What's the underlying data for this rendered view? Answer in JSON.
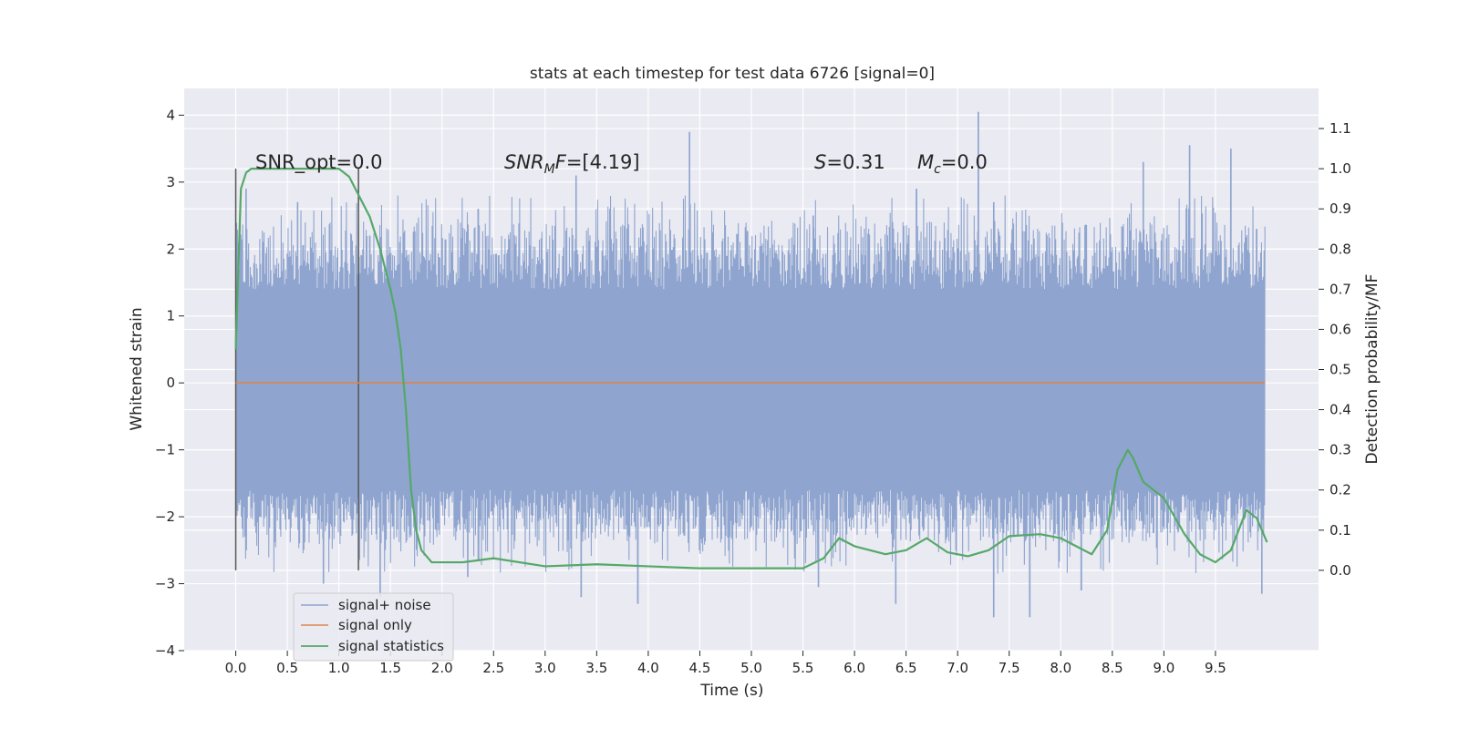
{
  "chart_data": {
    "type": "line",
    "title": "stats at each timestep for test data 6726 [signal=0]",
    "xlabel": "Time (s)",
    "ylabel": "Whitened strain",
    "y2label": "Detection probability/MF",
    "xlim": [
      -0.5,
      10.5
    ],
    "ylim": [
      -4,
      4.4
    ],
    "y2lim": [
      -0.2,
      1.2
    ],
    "xticks": [
      "0.0",
      "0.5",
      "1.0",
      "1.5",
      "2.0",
      "2.5",
      "3.0",
      "3.5",
      "4.0",
      "4.5",
      "5.0",
      "5.5",
      "6.0",
      "6.5",
      "7.0",
      "7.5",
      "8.0",
      "8.5",
      "9.0",
      "9.5"
    ],
    "yticks": [
      "4",
      "3",
      "2",
      "1",
      "0",
      "−1",
      "−2",
      "−3",
      "−4"
    ],
    "y2ticks": [
      "1.1",
      "1.0",
      "0.9",
      "0.8",
      "0.7",
      "0.6",
      "0.5",
      "0.4",
      "0.3",
      "0.2",
      "0.1",
      "0.0"
    ],
    "grid": true,
    "legend_position": "lower-left",
    "colors": {
      "background": "#eaeaf2",
      "noise": "#8fa5cf",
      "signal": "#dd8452",
      "stats": "#55a868",
      "markers": "#555555"
    },
    "annotations": {
      "snr_opt": "SNR_opt=0.0",
      "snr_mf_var": "SNR",
      "snr_mf_sub": "M",
      "snr_mf_var2": "F",
      "snr_mf_val": "=[4.19]",
      "s_var": "S",
      "s_val": "=0.31",
      "mc_var": "M",
      "mc_sub": "c",
      "mc_val": "=0.0"
    },
    "markers_x": [
      0.0,
      1.19
    ],
    "series": [
      {
        "name": "signal+ noise",
        "style": "noise band",
        "x_range": [
          0.0,
          9.98
        ],
        "band": [
          -1.6,
          1.4
        ],
        "peaks": [
          [
            0.1,
            2.9
          ],
          [
            0.6,
            2.7
          ],
          [
            1.3,
            2.2
          ],
          [
            2.35,
            2.6
          ],
          [
            3.3,
            3.1
          ],
          [
            4.4,
            3.75
          ],
          [
            5.6,
            2.5
          ],
          [
            6.6,
            2.9
          ],
          [
            7.2,
            4.05
          ],
          [
            7.35,
            2.7
          ],
          [
            8.8,
            3.3
          ],
          [
            9.25,
            3.55
          ],
          [
            9.65,
            3.5
          ],
          [
            9.9,
            2.3
          ]
        ],
        "troughs": [
          [
            0.1,
            -2.5
          ],
          [
            0.85,
            -3.0
          ],
          [
            1.4,
            -3.2
          ],
          [
            2.25,
            -2.9
          ],
          [
            3.35,
            -3.2
          ],
          [
            3.9,
            -3.3
          ],
          [
            5.65,
            -3.05
          ],
          [
            6.4,
            -3.3
          ],
          [
            7.35,
            -3.5
          ],
          [
            7.7,
            -3.5
          ],
          [
            8.2,
            -3.1
          ],
          [
            9.95,
            -3.15
          ]
        ]
      },
      {
        "name": "signal only",
        "x": [
          0.0,
          9.98
        ],
        "y": [
          0.0,
          0.0
        ]
      },
      {
        "name": "signal statistics",
        "axis": "right",
        "x": [
          0.0,
          0.05,
          0.1,
          0.15,
          0.25,
          0.4,
          0.6,
          0.8,
          1.0,
          1.1,
          1.2,
          1.3,
          1.4,
          1.5,
          1.55,
          1.6,
          1.65,
          1.7,
          1.75,
          1.8,
          1.9,
          2.0,
          2.2,
          2.5,
          3.0,
          3.5,
          4.0,
          4.5,
          5.0,
          5.5,
          5.7,
          5.85,
          6.0,
          6.3,
          6.5,
          6.7,
          6.9,
          7.1,
          7.3,
          7.5,
          7.8,
          8.0,
          8.3,
          8.45,
          8.55,
          8.65,
          8.7,
          8.8,
          9.0,
          9.2,
          9.35,
          9.5,
          9.65,
          9.8,
          9.9,
          10.0
        ],
        "y": [
          0.55,
          0.95,
          0.99,
          1.0,
          1.0,
          1.0,
          1.0,
          1.0,
          1.0,
          0.98,
          0.93,
          0.88,
          0.8,
          0.7,
          0.64,
          0.55,
          0.4,
          0.2,
          0.1,
          0.05,
          0.02,
          0.02,
          0.02,
          0.03,
          0.01,
          0.015,
          0.01,
          0.005,
          0.005,
          0.005,
          0.03,
          0.08,
          0.06,
          0.04,
          0.05,
          0.08,
          0.045,
          0.035,
          0.05,
          0.085,
          0.09,
          0.08,
          0.04,
          0.1,
          0.25,
          0.3,
          0.28,
          0.22,
          0.18,
          0.09,
          0.04,
          0.02,
          0.05,
          0.15,
          0.13,
          0.07
        ]
      }
    ]
  }
}
